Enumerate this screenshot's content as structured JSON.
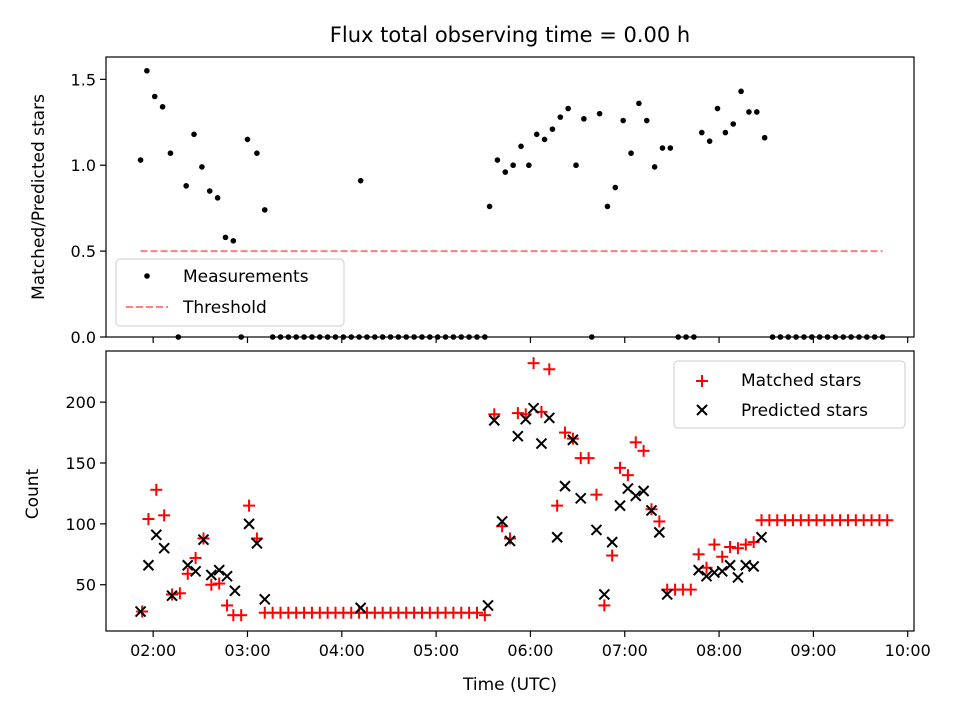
{
  "figure": {
    "title": "Flux total observing time = 0.00 h"
  },
  "chart_data": [
    {
      "type": "scatter",
      "ylabel": "Matched/Predicted stars",
      "xlim": [
        "01:30",
        "10:04"
      ],
      "ylim": [
        0,
        1.63
      ],
      "yticks": [
        0.0,
        0.5,
        1.0,
        1.5
      ],
      "ytick_labels": [
        "0.0",
        "0.5",
        "1.0",
        "1.5"
      ],
      "xtick_labels": false,
      "legend": {
        "placement": "lower-left",
        "entries": [
          "Measurements",
          "Threshold"
        ]
      },
      "series": [
        {
          "name": "Measurements",
          "color": "#000000",
          "marker": "dot",
          "points": [
            [
              "01:52",
              1.03
            ],
            [
              "01:56",
              1.55
            ],
            [
              "02:01",
              1.4
            ],
            [
              "02:06",
              1.34
            ],
            [
              "02:11",
              1.07
            ],
            [
              "02:16",
              0.0
            ],
            [
              "02:21",
              0.88
            ],
            [
              "02:26",
              1.18
            ],
            [
              "02:31",
              0.99
            ],
            [
              "02:36",
              0.85
            ],
            [
              "02:41",
              0.81
            ],
            [
              "02:46",
              0.58
            ],
            [
              "02:51",
              0.56
            ],
            [
              "02:56",
              0.0
            ],
            [
              "03:00",
              1.15
            ],
            [
              "03:06",
              1.07
            ],
            [
              "03:11",
              0.74
            ],
            [
              "03:16",
              0.0
            ],
            [
              "03:21",
              0.0
            ],
            [
              "03:26",
              0.0
            ],
            [
              "03:31",
              0.0
            ],
            [
              "03:36",
              0.0
            ],
            [
              "03:41",
              0.0
            ],
            [
              "03:46",
              0.0
            ],
            [
              "03:51",
              0.0
            ],
            [
              "03:56",
              0.0
            ],
            [
              "04:01",
              0.0
            ],
            [
              "04:06",
              0.0
            ],
            [
              "04:11",
              0.0
            ],
            [
              "04:12",
              0.91
            ],
            [
              "04:16",
              0.0
            ],
            [
              "04:21",
              0.0
            ],
            [
              "04:26",
              0.0
            ],
            [
              "04:31",
              0.0
            ],
            [
              "04:36",
              0.0
            ],
            [
              "04:41",
              0.0
            ],
            [
              "04:46",
              0.0
            ],
            [
              "04:51",
              0.0
            ],
            [
              "04:56",
              0.0
            ],
            [
              "05:01",
              0.0
            ],
            [
              "05:06",
              0.0
            ],
            [
              "05:11",
              0.0
            ],
            [
              "05:16",
              0.0
            ],
            [
              "05:21",
              0.0
            ],
            [
              "05:26",
              0.0
            ],
            [
              "05:31",
              0.0
            ],
            [
              "05:34",
              0.76
            ],
            [
              "05:39",
              1.03
            ],
            [
              "05:44",
              0.96
            ],
            [
              "05:49",
              1.0
            ],
            [
              "05:54",
              1.11
            ],
            [
              "05:59",
              1.0
            ],
            [
              "06:04",
              1.18
            ],
            [
              "06:09",
              1.15
            ],
            [
              "06:14",
              1.21
            ],
            [
              "06:19",
              1.28
            ],
            [
              "06:24",
              1.33
            ],
            [
              "06:29",
              1.0
            ],
            [
              "06:34",
              1.27
            ],
            [
              "06:39",
              0.0
            ],
            [
              "06:44",
              1.3
            ],
            [
              "06:49",
              0.76
            ],
            [
              "06:54",
              0.87
            ],
            [
              "06:59",
              1.26
            ],
            [
              "07:04",
              1.07
            ],
            [
              "07:09",
              1.36
            ],
            [
              "07:14",
              1.26
            ],
            [
              "07:19",
              0.99
            ],
            [
              "07:24",
              1.1
            ],
            [
              "07:29",
              1.1
            ],
            [
              "07:34",
              0.0
            ],
            [
              "07:39",
              0.0
            ],
            [
              "07:44",
              0.0
            ],
            [
              "07:49",
              1.19
            ],
            [
              "07:54",
              1.14
            ],
            [
              "07:59",
              1.33
            ],
            [
              "08:04",
              1.19
            ],
            [
              "08:09",
              1.24
            ],
            [
              "08:14",
              1.43
            ],
            [
              "08:19",
              1.31
            ],
            [
              "08:24",
              1.31
            ],
            [
              "08:29",
              1.16
            ],
            [
              "08:34",
              0.0
            ],
            [
              "08:39",
              0.0
            ],
            [
              "08:44",
              0.0
            ],
            [
              "08:49",
              0.0
            ],
            [
              "08:54",
              0.0
            ],
            [
              "08:59",
              0.0
            ],
            [
              "09:04",
              0.0
            ],
            [
              "09:09",
              0.0
            ],
            [
              "09:14",
              0.0
            ],
            [
              "09:19",
              0.0
            ],
            [
              "09:24",
              0.0
            ],
            [
              "09:29",
              0.0
            ],
            [
              "09:34",
              0.0
            ],
            [
              "09:39",
              0.0
            ],
            [
              "09:44",
              0.0
            ]
          ]
        },
        {
          "name": "Threshold",
          "color": "#ff7f7f",
          "style": "dashed-line",
          "points": [
            [
              "01:52",
              0.5
            ],
            [
              "09:44",
              0.5
            ]
          ]
        }
      ]
    },
    {
      "type": "scatter",
      "xlabel": "Time (UTC)",
      "ylabel": "Count",
      "xlim": [
        "01:30",
        "10:04"
      ],
      "ylim": [
        12,
        242
      ],
      "yticks": [
        50,
        100,
        150,
        200
      ],
      "ytick_labels": [
        "50",
        "100",
        "150",
        "200"
      ],
      "xticks": [
        "02:00",
        "03:00",
        "04:00",
        "05:00",
        "06:00",
        "07:00",
        "08:00",
        "09:00",
        "10:00"
      ],
      "xtick_labels": [
        "02:00",
        "03:00",
        "04:00",
        "05:00",
        "06:00",
        "07:00",
        "08:00",
        "09:00",
        "10:00"
      ],
      "legend": {
        "placement": "upper-right",
        "entries": [
          "Matched stars",
          "Predicted stars"
        ]
      },
      "series": [
        {
          "name": "Matched stars",
          "color": "#ff0000",
          "marker": "plus",
          "points": [
            [
              "01:53",
              28
            ],
            [
              "01:57",
              104
            ],
            [
              "02:02",
              128
            ],
            [
              "02:07",
              107
            ],
            [
              "02:12",
              42
            ],
            [
              "02:17",
              43
            ],
            [
              "02:22",
              59
            ],
            [
              "02:27",
              72
            ],
            [
              "02:32",
              88
            ],
            [
              "02:37",
              50
            ],
            [
              "02:42",
              51
            ],
            [
              "02:47",
              33
            ],
            [
              "02:51",
              25
            ],
            [
              "02:56",
              25
            ],
            [
              "03:01",
              115
            ],
            [
              "03:06",
              88
            ],
            [
              "03:11",
              27
            ],
            [
              "03:16",
              27
            ],
            [
              "03:21",
              27
            ],
            [
              "03:26",
              27
            ],
            [
              "03:31",
              27
            ],
            [
              "03:36",
              27
            ],
            [
              "03:41",
              27
            ],
            [
              "03:46",
              27
            ],
            [
              "03:51",
              27
            ],
            [
              "03:56",
              27
            ],
            [
              "04:01",
              27
            ],
            [
              "04:06",
              27
            ],
            [
              "04:11",
              27
            ],
            [
              "04:16",
              27
            ],
            [
              "04:21",
              27
            ],
            [
              "04:26",
              27
            ],
            [
              "04:31",
              27
            ],
            [
              "04:36",
              27
            ],
            [
              "04:41",
              27
            ],
            [
              "04:46",
              27
            ],
            [
              "04:51",
              27
            ],
            [
              "04:56",
              27
            ],
            [
              "05:01",
              27
            ],
            [
              "05:06",
              27
            ],
            [
              "05:11",
              27
            ],
            [
              "05:16",
              27
            ],
            [
              "05:21",
              27
            ],
            [
              "05:26",
              27
            ],
            [
              "05:31",
              25
            ],
            [
              "05:37",
              190
            ],
            [
              "05:42",
              98
            ],
            [
              "05:47",
              88
            ],
            [
              "05:52",
              191
            ],
            [
              "05:57",
              190
            ],
            [
              "06:02",
              232
            ],
            [
              "06:07",
              192
            ],
            [
              "06:12",
              227
            ],
            [
              "06:17",
              115
            ],
            [
              "06:22",
              175
            ],
            [
              "06:27",
              170
            ],
            [
              "06:32",
              154
            ],
            [
              "06:37",
              154
            ],
            [
              "06:42",
              124
            ],
            [
              "06:47",
              33
            ],
            [
              "06:52",
              74
            ],
            [
              "06:57",
              146
            ],
            [
              "07:02",
              140
            ],
            [
              "07:07",
              167
            ],
            [
              "07:12",
              160
            ],
            [
              "07:17",
              112
            ],
            [
              "07:22",
              102
            ],
            [
              "07:27",
              46
            ],
            [
              "07:32",
              46
            ],
            [
              "07:37",
              46
            ],
            [
              "07:42",
              46
            ],
            [
              "07:47",
              75
            ],
            [
              "07:52",
              64
            ],
            [
              "07:57",
              83
            ],
            [
              "08:02",
              73
            ],
            [
              "08:07",
              81
            ],
            [
              "08:12",
              80
            ],
            [
              "08:17",
              83
            ],
            [
              "08:22",
              85
            ],
            [
              "08:27",
              103
            ],
            [
              "08:32",
              103
            ],
            [
              "08:37",
              103
            ],
            [
              "08:42",
              103
            ],
            [
              "08:47",
              103
            ],
            [
              "08:52",
              103
            ],
            [
              "08:57",
              103
            ],
            [
              "09:02",
              103
            ],
            [
              "09:07",
              103
            ],
            [
              "09:12",
              103
            ],
            [
              "09:17",
              103
            ],
            [
              "09:22",
              103
            ],
            [
              "09:27",
              103
            ],
            [
              "09:32",
              103
            ],
            [
              "09:37",
              103
            ],
            [
              "09:42",
              103
            ],
            [
              "09:47",
              103
            ]
          ]
        },
        {
          "name": "Predicted stars",
          "color": "#000000",
          "marker": "x",
          "points": [
            [
              "01:52",
              28
            ],
            [
              "01:57",
              66
            ],
            [
              "02:02",
              91
            ],
            [
              "02:07",
              80
            ],
            [
              "02:12",
              41
            ],
            [
              "02:22",
              66
            ],
            [
              "02:27",
              61
            ],
            [
              "02:32",
              87
            ],
            [
              "02:37",
              58
            ],
            [
              "02:42",
              62
            ],
            [
              "02:47",
              57
            ],
            [
              "02:52",
              45
            ],
            [
              "03:01",
              100
            ],
            [
              "03:06",
              84
            ],
            [
              "03:11",
              38
            ],
            [
              "04:12",
              31
            ],
            [
              "05:33",
              33
            ],
            [
              "05:37",
              185
            ],
            [
              "05:42",
              102
            ],
            [
              "05:47",
              86
            ],
            [
              "05:52",
              172
            ],
            [
              "05:57",
              186
            ],
            [
              "06:02",
              195
            ],
            [
              "06:07",
              166
            ],
            [
              "06:12",
              187
            ],
            [
              "06:17",
              89
            ],
            [
              "06:22",
              131
            ],
            [
              "06:27",
              169
            ],
            [
              "06:32",
              121
            ],
            [
              "06:42",
              95
            ],
            [
              "06:47",
              42
            ],
            [
              "06:52",
              85
            ],
            [
              "06:57",
              115
            ],
            [
              "07:02",
              129
            ],
            [
              "07:07",
              123
            ],
            [
              "07:12",
              127
            ],
            [
              "07:17",
              111
            ],
            [
              "07:22",
              93
            ],
            [
              "07:27",
              42
            ],
            [
              "07:47",
              62
            ],
            [
              "07:52",
              57
            ],
            [
              "07:57",
              60
            ],
            [
              "08:02",
              61
            ],
            [
              "08:07",
              66
            ],
            [
              "08:12",
              56
            ],
            [
              "08:17",
              66
            ],
            [
              "08:22",
              65
            ],
            [
              "08:27",
              89
            ]
          ]
        }
      ]
    }
  ]
}
